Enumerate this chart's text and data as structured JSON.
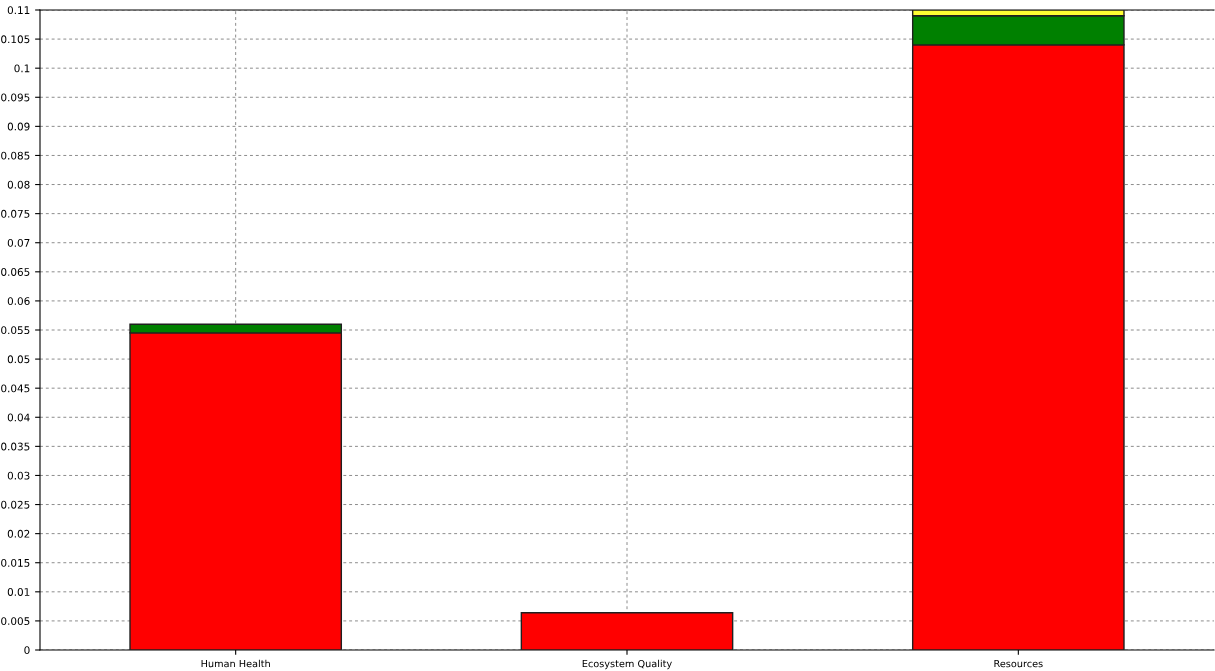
{
  "chart_data": {
    "type": "bar",
    "stacked": true,
    "categories": [
      "Human Health",
      "Ecosystem Quality",
      "Resources"
    ],
    "series": [
      {
        "color": "#ff0000",
        "values": [
          0.0545,
          0.0064,
          0.104
        ]
      },
      {
        "color": "#008000",
        "values": [
          0.0015,
          null,
          0.005
        ]
      },
      {
        "color": "#ffff33",
        "values": [
          null,
          null,
          0.001
        ]
      }
    ],
    "ylim": [
      0,
      0.11
    ],
    "yticks": [
      0,
      0.005,
      0.01,
      0.015,
      0.02,
      0.025,
      0.03,
      0.035,
      0.04,
      0.045,
      0.05,
      0.055,
      0.06,
      0.065,
      0.07,
      0.075,
      0.08,
      0.085,
      0.09,
      0.095,
      0.1,
      0.105,
      0.11
    ],
    "grid": true
  }
}
